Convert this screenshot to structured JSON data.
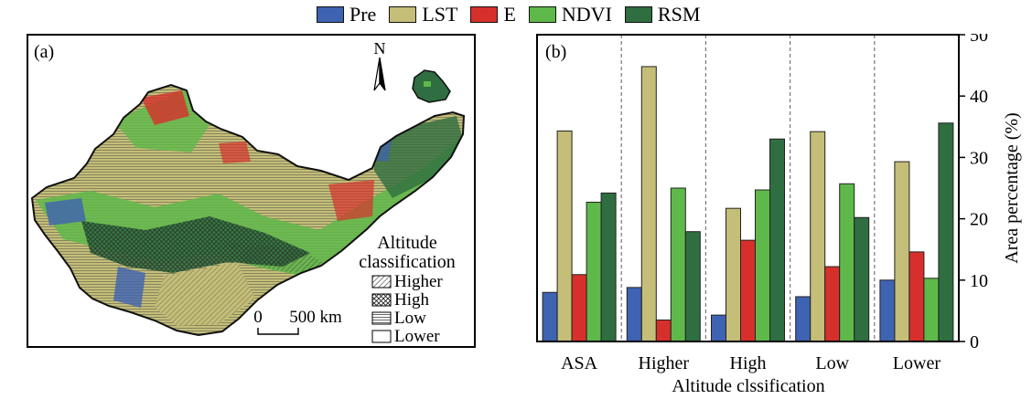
{
  "legend": {
    "items": [
      {
        "label": "Pre",
        "color": "#3f63b3"
      },
      {
        "label": "LST",
        "color": "#c4be78"
      },
      {
        "label": "E",
        "color": "#d7302c"
      },
      {
        "label": "NDVI",
        "color": "#5fb94a"
      },
      {
        "label": "RSM",
        "color": "#2f6e40"
      }
    ]
  },
  "map": {
    "panel_label": "(a)",
    "north_label": "N",
    "scale_zero": "0",
    "scale_label": "500 km",
    "altitude_title_line1": "Altitude",
    "altitude_title_line2": "classification",
    "altitude_items": [
      "Higher",
      "High",
      "Low",
      "Lower"
    ]
  },
  "chart_data": {
    "type": "bar",
    "panel_label": "(b)",
    "categories": [
      "ASA",
      "Higher",
      "High",
      "Low",
      "Lower"
    ],
    "series": [
      {
        "name": "Pre",
        "color": "#3f63b3",
        "values": [
          8.0,
          8.8,
          4.3,
          7.3,
          10.0
        ]
      },
      {
        "name": "LST",
        "color": "#c4be78",
        "values": [
          34.3,
          44.8,
          21.7,
          34.2,
          29.3
        ]
      },
      {
        "name": "E",
        "color": "#d7302c",
        "values": [
          10.9,
          3.5,
          16.5,
          12.2,
          14.6
        ]
      },
      {
        "name": "NDVI",
        "color": "#5fb94a",
        "values": [
          22.7,
          25.0,
          24.7,
          25.7,
          10.3
        ]
      },
      {
        "name": "RSM",
        "color": "#2f6e40",
        "values": [
          24.2,
          17.9,
          33.0,
          20.2,
          35.6
        ]
      }
    ],
    "xlabel": "Altitude clssification",
    "ylabel": "Area percentage (%)",
    "ylim": [
      0,
      50
    ],
    "yticks": [
      0,
      10,
      20,
      30,
      40,
      50
    ],
    "yaxis_side": "right",
    "group_separators": "dashed"
  }
}
